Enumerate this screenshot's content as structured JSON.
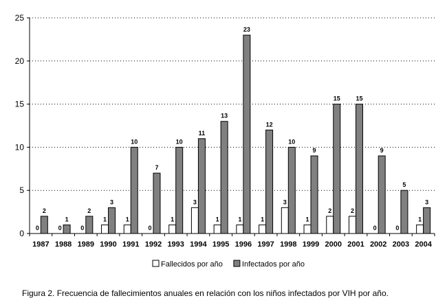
{
  "chart_data": {
    "type": "bar",
    "categories": [
      "1987",
      "1988",
      "1989",
      "1990",
      "1991",
      "1992",
      "1993",
      "1994",
      "1995",
      "1996",
      "1997",
      "1998",
      "1999",
      "2000",
      "2001",
      "2002",
      "2003",
      "2004"
    ],
    "series": [
      {
        "name": "Fallecidos por año",
        "color": "#ffffff",
        "values": [
          0,
          0,
          0,
          1,
          1,
          0,
          1,
          3,
          1,
          1,
          1,
          3,
          1,
          2,
          2,
          0,
          0,
          1
        ]
      },
      {
        "name": "Infectados por año",
        "color": "#808080",
        "values": [
          2,
          1,
          2,
          3,
          10,
          7,
          10,
          11,
          13,
          23,
          12,
          10,
          9,
          15,
          15,
          9,
          5,
          3
        ]
      }
    ],
    "ylim": [
      0,
      25
    ],
    "yticks": [
      0,
      5,
      10,
      15,
      20,
      25
    ],
    "grid": true,
    "legend": "bottom",
    "xlabel": "",
    "ylabel": "",
    "title": ""
  },
  "caption": "Figura 2. Frecuencia de fallecimientos anuales en relación con los niños infectados por VIH por año."
}
